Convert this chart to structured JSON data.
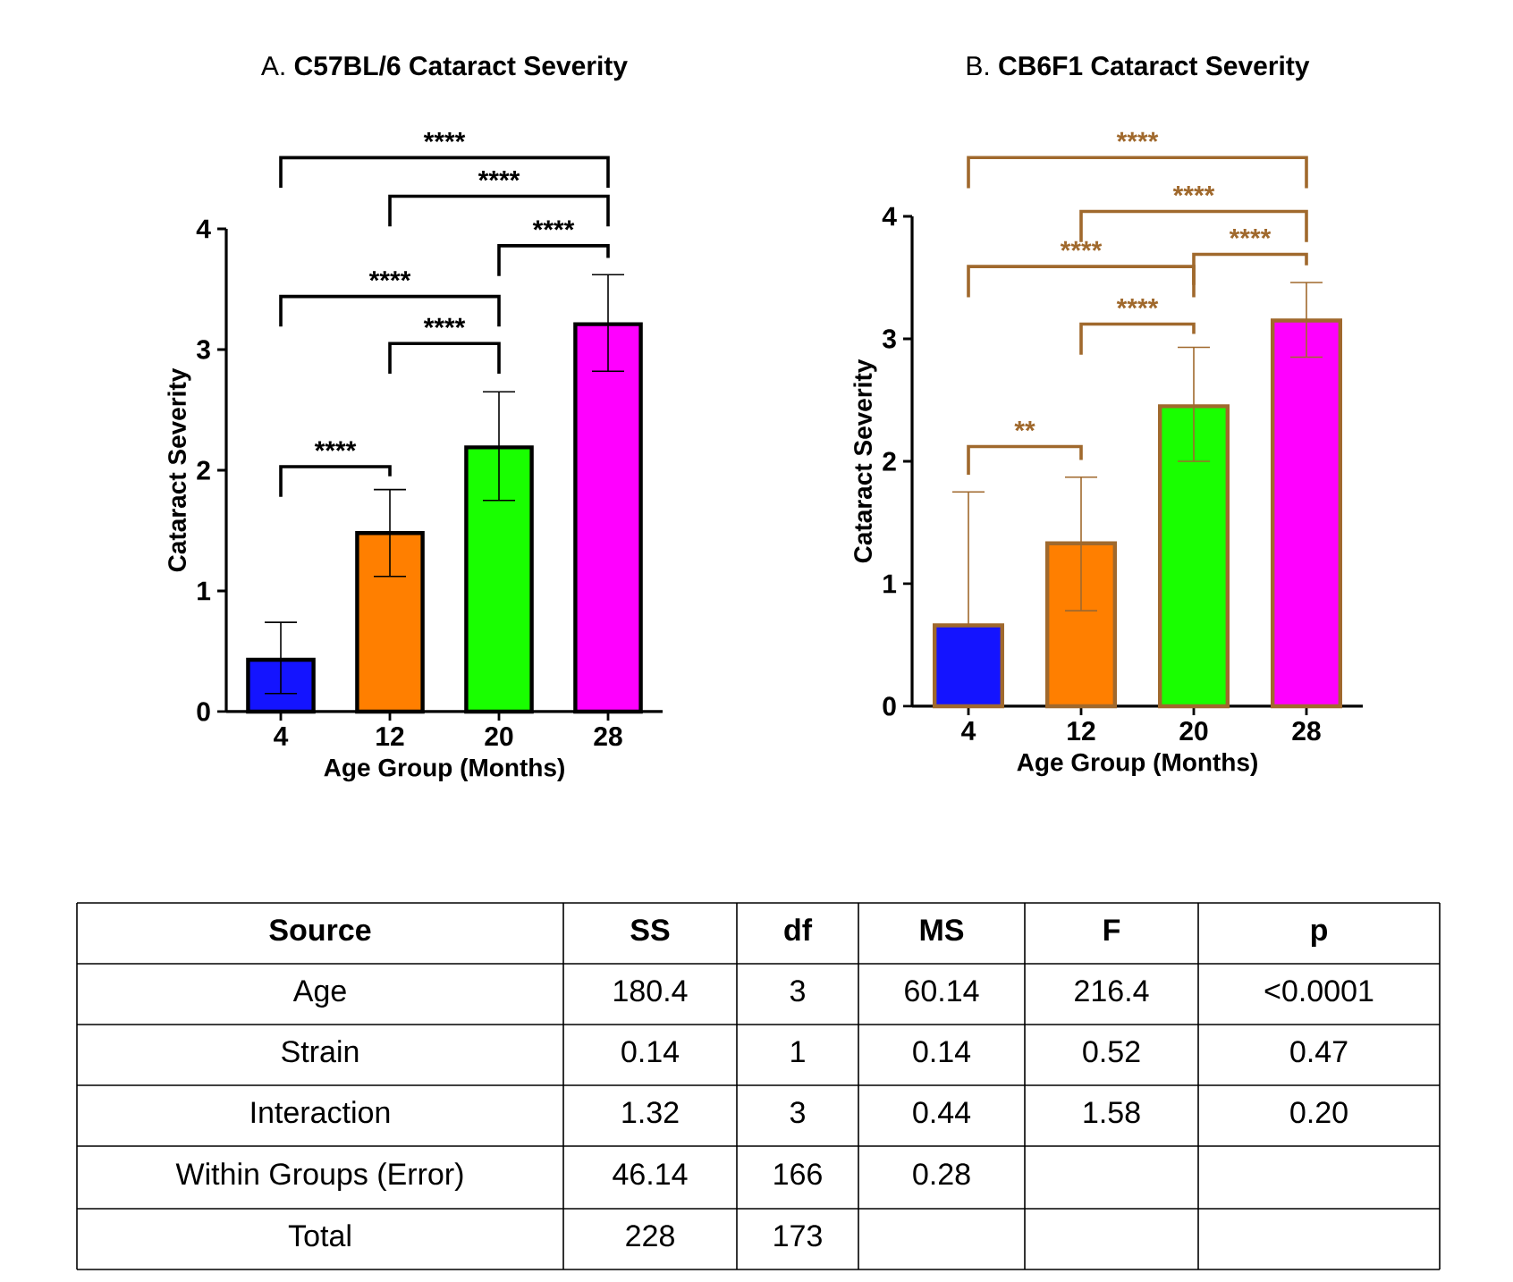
{
  "chart_data": [
    {
      "type": "bar",
      "title": "A. **C57BL/6 Cataract Severity**",
      "xlabel": "Age Group (Months)",
      "ylabel": "Cataract Severity",
      "categories": [
        "4",
        "12",
        "20",
        "28"
      ],
      "values": [
        0.43,
        1.48,
        2.19,
        3.21
      ],
      "colors": [
        "#1414ff",
        "#ff7f00",
        "#19ff00",
        "#ff00ff"
      ],
      "errors": [
        [
          0.15,
          0.74
        ],
        [
          1.12,
          1.84
        ],
        [
          1.75,
          2.65
        ],
        [
          2.82,
          3.62
        ]
      ],
      "ylim": [
        0,
        4
      ],
      "yticks": [
        0,
        1,
        2,
        3,
        4
      ],
      "annotations": [
        "****",
        "****",
        "****",
        "****",
        "****",
        "****"
      ]
    },
    {
      "type": "bar",
      "title": "B. **CB6F1 Cataract Severity**",
      "xlabel": "Age Group (Months)",
      "ylabel": "Cataract Severity",
      "categories": [
        "4",
        "12",
        "20",
        "28"
      ],
      "values": [
        0.66,
        1.33,
        2.45,
        3.15
      ],
      "colors": [
        "#1414ff",
        "#ff7f00",
        "#19ff00",
        "#ff00ff"
      ],
      "errors": [
        [
          0.66,
          1.75
        ],
        [
          0.78,
          1.87
        ],
        [
          2.0,
          2.93
        ],
        [
          2.85,
          3.46
        ]
      ],
      "ylim": [
        0,
        4
      ],
      "yticks": [
        0,
        1,
        2,
        3,
        4
      ],
      "annotations": [
        "****",
        "****",
        "****",
        "****",
        "****",
        "**"
      ]
    },
    {
      "type": "other",
      "categories": [
        "Source",
        "SS",
        "df",
        "MS",
        "F",
        "p"
      ],
      "cell_labels": [
        [
          "Age",
          "180.4",
          "3",
          "60.14",
          "216.4",
          "<0.0001"
        ],
        [
          "Strain",
          "0.14",
          "1",
          "0.14",
          "0.52",
          "0.47"
        ],
        [
          "Interaction",
          "1.32",
          "3",
          "0.44",
          "1.58",
          "0.20"
        ],
        [
          "Within Groups (Error)",
          "46.14",
          "166",
          "0.28",
          null,
          null
        ],
        [
          "Total",
          "228",
          "173",
          null,
          null,
          null
        ]
      ]
    }
  ]
}
